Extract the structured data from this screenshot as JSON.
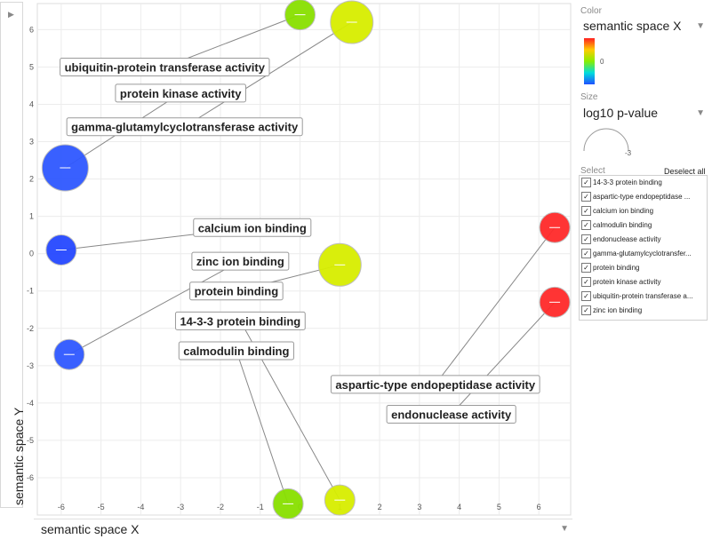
{
  "chart_data": {
    "type": "scatter",
    "xlim": [
      -6.6,
      6.8
    ],
    "ylim": [
      -7.0,
      6.7
    ],
    "xticks": [
      -6,
      -5,
      -4,
      -3,
      -2,
      -1,
      0,
      1,
      2,
      3,
      4,
      5,
      6
    ],
    "yticks": [
      6,
      5,
      4,
      3,
      2,
      1,
      0,
      -1,
      -2,
      -3,
      -4,
      -5,
      -6
    ],
    "grid": true,
    "points": [
      {
        "label": "ubiquitin-protein transferase activity",
        "x": 0.0,
        "y": 6.4,
        "color": "#88e000",
        "label_x": -3.4,
        "label_y": 5.0,
        "size": 2
      },
      {
        "label": "gamma-glutamylcyclotransferase activity",
        "x": 1.3,
        "y": 6.2,
        "color": "#d8ee00",
        "label_x": -2.9,
        "label_y": 3.4,
        "size": 3
      },
      {
        "label": "protein kinase activity",
        "x": -5.9,
        "y": 2.3,
        "color": "#2f58ff",
        "label_x": -3.0,
        "label_y": 4.3,
        "size": 4
      },
      {
        "label": "calcium ion binding",
        "x": -6.0,
        "y": 0.1,
        "color": "#2548ff",
        "label_x": -1.2,
        "label_y": 0.7,
        "size": 2
      },
      {
        "label": "zinc ion binding",
        "x": -5.8,
        "y": -2.7,
        "color": "#2f58ff",
        "label_x": -1.5,
        "label_y": -0.2,
        "size": 2
      },
      {
        "label": "protein binding",
        "x": 1.0,
        "y": -0.3,
        "color": "#d8ee00",
        "label_x": -1.6,
        "label_y": -1.0,
        "size": 3
      },
      {
        "label": "14-3-3 protein binding",
        "x": 1.0,
        "y": -6.6,
        "color": "#d8ee00",
        "label_x": -1.5,
        "label_y": -1.8,
        "size": 2
      },
      {
        "label": "calmodulin binding",
        "x": -0.3,
        "y": -6.7,
        "color": "#88e000",
        "label_x": -1.6,
        "label_y": -2.6,
        "size": 2
      },
      {
        "label": "aspartic-type endopeptidase activity",
        "x": 6.4,
        "y": 0.7,
        "color": "#ff2a2a",
        "label_x": 3.4,
        "label_y": -3.5,
        "size": 2
      },
      {
        "label": "endonuclease activity",
        "x": 6.4,
        "y": -1.3,
        "color": "#ff2a2a",
        "label_x": 3.8,
        "label_y": -4.3,
        "size": 2
      }
    ]
  },
  "axes": {
    "x_label": "semantic space X",
    "y_label": "semantic space Y"
  },
  "side_panel": {
    "color_label": "Color",
    "color_value": "semantic space X",
    "color_scale_zero": "0",
    "size_label": "Size",
    "size_value": "log10 p-value",
    "size_gauge_value": "-3",
    "select_label": "Select",
    "deselect_label": "Deselect all",
    "items": [
      "14-3-3 protein binding",
      "aspartic-type endopeptidase ...",
      "calcium ion binding",
      "calmodulin binding",
      "endonuclease activity",
      "gamma-glutamylcyclotransfer...",
      "protein binding",
      "protein kinase activity",
      "ubiquitin-protein transferase a...",
      "zinc ion binding"
    ]
  }
}
